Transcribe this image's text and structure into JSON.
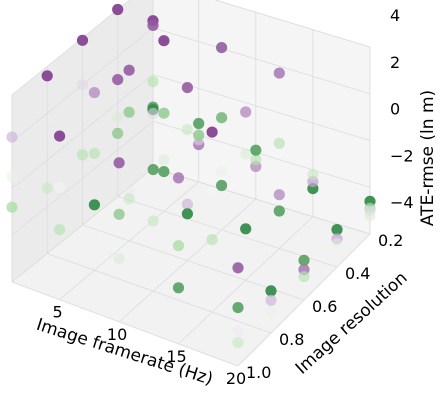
{
  "chart_data": {
    "type": "scatter",
    "title": "",
    "xlabel": "Image framerate (Hz)",
    "ylabel": "Image resolution",
    "zlabel": "ATE-rmse (ln m)",
    "x_ticks": [
      "5",
      "10",
      "15",
      "20"
    ],
    "y_ticks": [
      "0.2",
      "0.4",
      "0.6",
      "0.8",
      "1.0"
    ],
    "z_ticks": [
      "−4",
      "−2",
      "0",
      "2",
      "4"
    ],
    "xlim": [
      1,
      20
    ],
    "ylim": [
      0.2,
      1.0
    ],
    "zlim": [
      -4,
      4
    ],
    "grid": true,
    "colormap": [
      "#1b7837",
      "#a6dba0",
      "#f7f7f7",
      "#c2a5cf",
      "#762a83"
    ],
    "points": [
      {
        "x": 1,
        "y": 0.2,
        "z": 2.3,
        "c": 0.95
      },
      {
        "x": 1,
        "y": 0.2,
        "z": 2.1,
        "c": 0.9
      },
      {
        "x": 1,
        "y": 0.2,
        "z": -0.3,
        "c": 0.3
      },
      {
        "x": 1,
        "y": 0.2,
        "z": -1.4,
        "c": 0.1
      },
      {
        "x": 1,
        "y": 0.2,
        "z": -1.5,
        "c": 0.05
      },
      {
        "x": 1,
        "y": 0.4,
        "z": 4.0,
        "c": 0.95
      },
      {
        "x": 1,
        "y": 0.4,
        "z": 1.0,
        "c": 0.9
      },
      {
        "x": 1,
        "y": 0.4,
        "z": -0.6,
        "c": 0.4
      },
      {
        "x": 1,
        "y": 0.4,
        "z": -1.3,
        "c": 0.2
      },
      {
        "x": 1,
        "y": 0.6,
        "z": 3.9,
        "c": 0.95
      },
      {
        "x": 1,
        "y": 0.6,
        "z": 2.0,
        "c": 0.6
      },
      {
        "x": 1,
        "y": 0.6,
        "z": -1.0,
        "c": 0.3
      },
      {
        "x": 1,
        "y": 0.8,
        "z": 3.6,
        "c": 0.95
      },
      {
        "x": 1,
        "y": 0.8,
        "z": 1.4,
        "c": 0.55
      },
      {
        "x": 1,
        "y": 0.8,
        "z": -1.2,
        "c": 0.35
      },
      {
        "x": 1,
        "y": 1.0,
        "z": 2.2,
        "c": 0.7
      },
      {
        "x": 1,
        "y": 1.0,
        "z": 0.5,
        "c": 0.45
      },
      {
        "x": 1,
        "y": 1.0,
        "z": -0.8,
        "c": 0.25
      },
      {
        "x": 5,
        "y": 0.2,
        "z": -1.5,
        "c": 0.1
      },
      {
        "x": 5,
        "y": 0.2,
        "z": -2.4,
        "c": 0.85
      },
      {
        "x": 5,
        "y": 0.2,
        "z": -2.2,
        "c": 0.6
      },
      {
        "x": 5,
        "y": 0.2,
        "z": -2.0,
        "c": 0.2
      },
      {
        "x": 5,
        "y": 0.4,
        "z": 3.3,
        "c": 0.95
      },
      {
        "x": 5,
        "y": 0.4,
        "z": 0.2,
        "c": 0.2
      },
      {
        "x": 5,
        "y": 0.4,
        "z": -1.8,
        "c": 0.4
      },
      {
        "x": 5,
        "y": 0.4,
        "z": -2.3,
        "c": 0.1
      },
      {
        "x": 5,
        "y": 0.6,
        "z": 3.3,
        "c": 0.9
      },
      {
        "x": 5,
        "y": 0.6,
        "z": 1.5,
        "c": 0.2
      },
      {
        "x": 5,
        "y": 0.6,
        "z": -1.9,
        "c": 0.55
      },
      {
        "x": 5,
        "y": 0.6,
        "z": -2.2,
        "c": 0.35
      },
      {
        "x": 5,
        "y": 0.8,
        "z": 3.6,
        "c": 0.8
      },
      {
        "x": 5,
        "y": 0.8,
        "z": 1.0,
        "c": 0.3
      },
      {
        "x": 5,
        "y": 0.8,
        "z": -1.2,
        "c": 0.05
      },
      {
        "x": 5,
        "y": 1.0,
        "z": 3.0,
        "c": 0.95
      },
      {
        "x": 5,
        "y": 1.0,
        "z": 0.8,
        "c": 0.5
      },
      {
        "x": 5,
        "y": 1.0,
        "z": -1.0,
        "c": 0.3
      },
      {
        "x": 10,
        "y": 0.2,
        "z": -2.6,
        "c": 0.8
      },
      {
        "x": 10,
        "y": 0.2,
        "z": -2.3,
        "c": 0.3
      },
      {
        "x": 10,
        "y": 0.2,
        "z": -1.9,
        "c": 0.1
      },
      {
        "x": 10,
        "y": 0.4,
        "z": 3.8,
        "c": 0.9
      },
      {
        "x": 10,
        "y": 0.4,
        "z": 0.8,
        "c": 0.15
      },
      {
        "x": 10,
        "y": 0.4,
        "z": -1.5,
        "c": 0.45
      },
      {
        "x": 10,
        "y": 0.4,
        "z": -2.1,
        "c": 0.1
      },
      {
        "x": 10,
        "y": 0.6,
        "z": 3.4,
        "c": 0.9
      },
      {
        "x": 10,
        "y": 0.6,
        "z": 1.6,
        "c": 0.35
      },
      {
        "x": 10,
        "y": 0.6,
        "z": -1.6,
        "c": 0.7
      },
      {
        "x": 10,
        "y": 0.6,
        "z": -2.0,
        "c": 0.05
      },
      {
        "x": 10,
        "y": 0.8,
        "z": 3.6,
        "c": 0.6
      },
      {
        "x": 10,
        "y": 0.8,
        "z": 1.2,
        "c": 0.1
      },
      {
        "x": 10,
        "y": 0.8,
        "z": -1.0,
        "c": 0.35
      },
      {
        "x": 10,
        "y": 1.0,
        "z": 2.8,
        "c": 0.9
      },
      {
        "x": 10,
        "y": 1.0,
        "z": 0.6,
        "c": 0.2
      },
      {
        "x": 10,
        "y": 1.0,
        "z": -1.3,
        "c": 0.4
      },
      {
        "x": 15,
        "y": 0.2,
        "z": -2.8,
        "c": 0.05
      },
      {
        "x": 15,
        "y": 0.2,
        "z": -2.5,
        "c": 0.75
      },
      {
        "x": 15,
        "y": 0.2,
        "z": -2.2,
        "c": 0.35
      },
      {
        "x": 15,
        "y": 0.4,
        "z": 3.5,
        "c": 0.85
      },
      {
        "x": 15,
        "y": 0.4,
        "z": 0.5,
        "c": 0.3
      },
      {
        "x": 15,
        "y": 0.4,
        "z": -1.7,
        "c": 0.8
      },
      {
        "x": 15,
        "y": 0.4,
        "z": -2.4,
        "c": 0.1
      },
      {
        "x": 15,
        "y": 0.6,
        "z": 3.2,
        "c": 0.8
      },
      {
        "x": 15,
        "y": 0.6,
        "z": 1.4,
        "c": 0.4
      },
      {
        "x": 15,
        "y": 0.6,
        "z": -1.8,
        "c": 0.05
      },
      {
        "x": 15,
        "y": 0.8,
        "z": 3.7,
        "c": 0.95
      },
      {
        "x": 15,
        "y": 0.8,
        "z": 1.1,
        "c": 0.5
      },
      {
        "x": 15,
        "y": 0.8,
        "z": -0.9,
        "c": 0.3
      },
      {
        "x": 15,
        "y": 1.0,
        "z": 3.1,
        "c": 0.85
      },
      {
        "x": 15,
        "y": 1.0,
        "z": 0.2,
        "c": 0.25
      },
      {
        "x": 15,
        "y": 1.0,
        "z": -1.6,
        "c": 0.1
      },
      {
        "x": 20,
        "y": 0.2,
        "z": -2.6,
        "c": 0.05
      },
      {
        "x": 20,
        "y": 0.2,
        "z": -2.9,
        "c": 0.25
      },
      {
        "x": 20,
        "y": 0.2,
        "z": -3.0,
        "c": 0.6
      },
      {
        "x": 20,
        "y": 0.2,
        "z": -3.2,
        "c": 0.4
      },
      {
        "x": 20,
        "y": 0.4,
        "z": -2.4,
        "c": 0.05
      },
      {
        "x": 20,
        "y": 0.4,
        "z": -2.8,
        "c": 0.75
      },
      {
        "x": 20,
        "y": 0.4,
        "z": -3.0,
        "c": 0.45
      },
      {
        "x": 20,
        "y": 0.6,
        "z": -2.3,
        "c": 0.1
      },
      {
        "x": 20,
        "y": 0.6,
        "z": -2.7,
        "c": 0.85
      },
      {
        "x": 20,
        "y": 0.6,
        "z": -3.0,
        "c": 0.3
      },
      {
        "x": 20,
        "y": 0.8,
        "z": -2.2,
        "c": 0.05
      },
      {
        "x": 20,
        "y": 0.8,
        "z": -2.6,
        "c": 0.7
      },
      {
        "x": 20,
        "y": 0.8,
        "z": -3.1,
        "c": 0.45
      },
      {
        "x": 20,
        "y": 1.0,
        "z": -1.5,
        "c": 0.1
      },
      {
        "x": 20,
        "y": 1.0,
        "z": -2.5,
        "c": 0.55
      },
      {
        "x": 20,
        "y": 1.0,
        "z": -3.0,
        "c": 0.35
      },
      {
        "x": 20,
        "y": 1.0,
        "z": 0.2,
        "c": 0.9
      }
    ]
  }
}
